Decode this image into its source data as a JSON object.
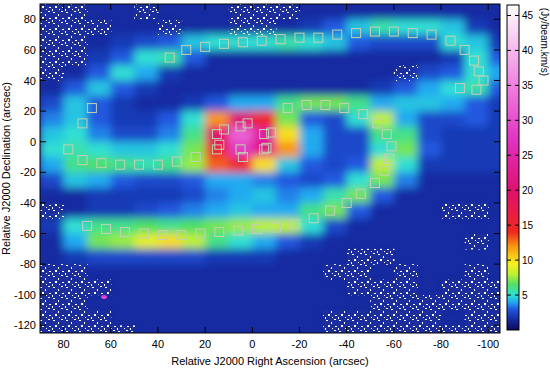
{
  "chart_data": {
    "type": "heatmap",
    "xlabel": "Relative J2000 Right Ascension (arcsec)",
    "ylabel": "Relative J2000 Declination (arcsec)",
    "xlim": [
      90,
      -105
    ],
    "ylim": [
      -125,
      90
    ],
    "xticks": [
      80,
      60,
      40,
      20,
      0,
      -20,
      -40,
      -60,
      -80,
      -100
    ],
    "yticks": [
      80,
      60,
      40,
      20,
      0,
      -20,
      -40,
      -60,
      -80,
      -100,
      -120
    ],
    "grid": false,
    "cell_x": [
      85,
      75,
      65,
      55,
      45,
      35,
      25,
      15,
      5,
      -5,
      -15,
      -25,
      -35,
      -45,
      -55,
      -65,
      -75,
      -85,
      -95,
      -105
    ],
    "cell_y": [
      85,
      75,
      65,
      55,
      45,
      35,
      25,
      15,
      5,
      -5,
      -15,
      -25,
      -35,
      -45,
      -55,
      -65,
      -75,
      -85,
      -95,
      -105,
      -115,
      -125
    ],
    "cells": [
      [
        null,
        null,
        1.5,
        1.5,
        null,
        1.5,
        1.5,
        1.5,
        null,
        null,
        null,
        1.5,
        1.5,
        1.5,
        1.5,
        1.5,
        1.5,
        1.5,
        1.5,
        1.5
      ],
      [
        null,
        null,
        null,
        1.5,
        1.5,
        null,
        1.5,
        1.5,
        null,
        null,
        1.5,
        2,
        3,
        4.5,
        5.5,
        5,
        5,
        4.5,
        2,
        1.5
      ],
      [
        null,
        null,
        1.5,
        2,
        2.5,
        3,
        4.5,
        5,
        5,
        5,
        5.5,
        5,
        4.5,
        3,
        2.5,
        2.5,
        2.5,
        5,
        4.5,
        2
      ],
      [
        null,
        null,
        2,
        3,
        5,
        5.5,
        3,
        1.5,
        1.5,
        1.5,
        1.5,
        1.5,
        1.5,
        1.5,
        1.5,
        1.5,
        1.5,
        2,
        5,
        3
      ],
      [
        null,
        1.5,
        3,
        5,
        4,
        2,
        1.5,
        1.5,
        1.5,
        1.5,
        1.5,
        1.5,
        1.5,
        1.5,
        1.5,
        null,
        2.5,
        3,
        5,
        4
      ],
      [
        1.5,
        3,
        4.5,
        3,
        2,
        1.5,
        1.5,
        1.5,
        1.5,
        1.5,
        1.5,
        1.5,
        1.5,
        1.5,
        2,
        3,
        4,
        5,
        5.5,
        3
      ],
      [
        2.5,
        4.5,
        3,
        2,
        1.5,
        1.5,
        2,
        3,
        4,
        4,
        6,
        7,
        7,
        6,
        4,
        4.5,
        4.5,
        4,
        3,
        2
      ],
      [
        3.5,
        4.5,
        3,
        2,
        2,
        3,
        5,
        12,
        20,
        14,
        7,
        3,
        2.5,
        5,
        8,
        4,
        2.5,
        2.5,
        3,
        2
      ],
      [
        4.5,
        5,
        3.5,
        2.5,
        2.5,
        3.5,
        6,
        20,
        32,
        24,
        10,
        4,
        2.5,
        2.5,
        6,
        6,
        2.5,
        2,
        2,
        2
      ],
      [
        5,
        5.5,
        5,
        4.5,
        4.5,
        5,
        7,
        16,
        28,
        22,
        12,
        4,
        2.5,
        2.5,
        5,
        7,
        3,
        2,
        2,
        2
      ],
      [
        4,
        6,
        6.5,
        6,
        5.5,
        6,
        7.5,
        13,
        14,
        10,
        4.5,
        3,
        2.5,
        3,
        8,
        5,
        2,
        2,
        2,
        2
      ],
      [
        2.5,
        4.5,
        4,
        3,
        2.5,
        2.5,
        3,
        4,
        4,
        3.5,
        3,
        2.5,
        3,
        5,
        7,
        3.5,
        1.5,
        1.5,
        1.5,
        1.5
      ],
      [
        1.5,
        1.5,
        2,
        2,
        2,
        2,
        2.5,
        3.5,
        4,
        4.5,
        3.5,
        4,
        5.5,
        7,
        3,
        1.5,
        1.5,
        1.5,
        1.5,
        1.5
      ],
      [
        null,
        1.5,
        2,
        2,
        2.5,
        3,
        3.5,
        4,
        4.5,
        4,
        4,
        6,
        7,
        3,
        1.5,
        1.5,
        1.5,
        null,
        null,
        1.5
      ],
      [
        2,
        5,
        6,
        6,
        6.5,
        6,
        6.5,
        7,
        7.5,
        8,
        8,
        5,
        2.5,
        1.5,
        1.5,
        1.5,
        1.5,
        1.5,
        1.5,
        1.5
      ],
      [
        1.5,
        4,
        7,
        7.5,
        9,
        10,
        8,
        6,
        5,
        4,
        3,
        2,
        1.5,
        1.5,
        1.5,
        1.5,
        1.5,
        1.5,
        null,
        1.5
      ],
      [
        1.5,
        2,
        2.5,
        2.5,
        2.5,
        2.5,
        2.5,
        2,
        2,
        2,
        1.5,
        1.5,
        1.5,
        null,
        null,
        1.5,
        1.5,
        1.5,
        1.5,
        1.5
      ],
      [
        null,
        null,
        1.5,
        1.5,
        1.5,
        1.5,
        1.5,
        1.5,
        1.5,
        1.5,
        1.5,
        1.5,
        null,
        null,
        1.5,
        null,
        1.5,
        1.5,
        null,
        1.5
      ],
      [
        null,
        null,
        null,
        1.5,
        1.5,
        1.5,
        1.5,
        1.5,
        1.5,
        1.5,
        1.5,
        1.5,
        1.5,
        null,
        null,
        null,
        1.5,
        null,
        null,
        null
      ],
      [
        null,
        null,
        1.5,
        1.5,
        1.5,
        1.5,
        1.5,
        1.5,
        1.5,
        1.5,
        1.5,
        1.5,
        1.5,
        1.5,
        null,
        null,
        null,
        null,
        null,
        null
      ],
      [
        null,
        null,
        null,
        1.5,
        1.5,
        1.5,
        1.5,
        1.5,
        1.5,
        1.5,
        1.5,
        1.5,
        null,
        null,
        null,
        null,
        null,
        1.5,
        null,
        null
      ],
      [
        null,
        null,
        null,
        null,
        1.5,
        1.5,
        1.5,
        1.5,
        1.5,
        1.5,
        1.5,
        1.5,
        null,
        null,
        null,
        null,
        null,
        null,
        null,
        null
      ]
    ],
    "color_range": [
      0,
      46.5
    ],
    "color_ticks": [
      5,
      10,
      15,
      20,
      25,
      30,
      35,
      40,
      45
    ],
    "color_label": "(Jy/beam.km/s)",
    "series": [
      {
        "type": "scatter",
        "marker": "square",
        "color": "#c4d0b4",
        "x": [
          35,
          28,
          20,
          12,
          4,
          -4,
          -12,
          -20,
          -28,
          -36,
          -44,
          -52,
          -60,
          -68,
          -76,
          -84,
          -90,
          -94,
          -96,
          -98,
          -95,
          -88,
          -15,
          -23,
          -31,
          -39,
          -47,
          -53,
          -57,
          -59,
          -58,
          -56,
          -52,
          -46,
          -40,
          -33,
          -26,
          -18,
          -10,
          -2,
          6,
          14,
          22,
          30,
          38,
          46,
          54,
          62,
          70,
          78,
          72,
          64,
          56,
          48,
          40,
          32,
          24,
          15,
          5,
          -5,
          5,
          15,
          -5,
          12,
          2,
          -8,
          -6,
          4,
          14,
          72,
          68
        ],
        "values": [
          55,
          60,
          62,
          64,
          65,
          66,
          67,
          68,
          68,
          70,
          71,
          72,
          72,
          71,
          70,
          66,
          60,
          53,
          46,
          40,
          34,
          35,
          22,
          24,
          24,
          22,
          18,
          12,
          5,
          -3,
          -11,
          -19,
          -27,
          -34,
          -40,
          -45,
          -50,
          -54,
          -56,
          -57,
          -58,
          -59,
          -60,
          -61,
          -61,
          -60,
          -59,
          -57,
          -55,
          -5,
          -12,
          -14,
          -15,
          -15,
          -15,
          -13,
          -10,
          5,
          10,
          5,
          -5,
          -5,
          -5,
          8,
          12,
          6,
          -4,
          -10,
          -2,
          12,
          22
        ]
      }
    ]
  }
}
